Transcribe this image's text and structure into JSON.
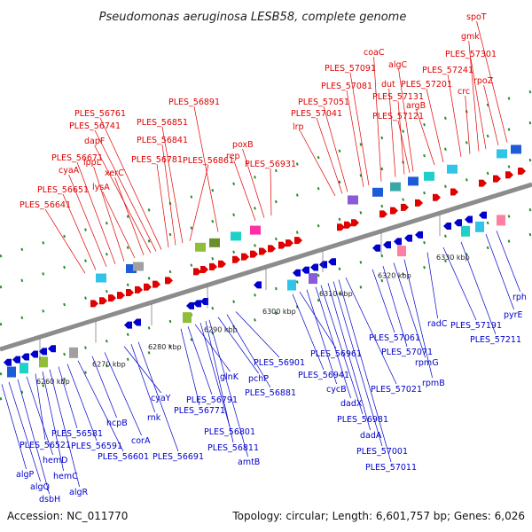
{
  "title": "Pseudomonas aeruginosa LESB58, complete genome",
  "accession": "Accession: NC_011770",
  "summary": "Topology: circular; Length: 6,601,757 bp; Genes: 6,026",
  "colors": {
    "forward": "#e00000",
    "reverse": "#0000cc",
    "backbone": "#8c8c8c",
    "dots": "#2a8a2a"
  },
  "ticks": [
    "6260 kbp",
    "6270 kbp",
    "6280 kbp",
    "6290 kbp",
    "6300 kbp",
    "6310 kbp",
    "6320 kbp",
    "6330 kbp"
  ],
  "forward_labels": [
    "PLES_56641",
    "PLES_56651",
    "cyaA",
    "PLES_56671",
    "lppL",
    "lysA",
    "xerC",
    "dapF",
    "PLES_56741",
    "PLES_56761",
    "PLES_56781",
    "PLES_56841",
    "PLES_56851",
    "PLES_56861",
    "PLES_56891",
    "rep",
    "poxB",
    "PLES_56931",
    "lrp",
    "PLES_57041",
    "PLES_57051",
    "PLES_57081",
    "PLES_57091",
    "coaC",
    "dut",
    "PLES_57131",
    "PLES_57121",
    "algC",
    "argB",
    "PLES_57201",
    "PLES_57241",
    "crc",
    "gmk",
    "PLES_57301",
    "rpoZ",
    "spoT"
  ],
  "reverse_labels": [
    "algP",
    "algQ",
    "dsbH",
    "hemD",
    "PLES_56521",
    "hemC",
    "algR",
    "PLES_56581",
    "PLES_56591",
    "PLES_56601",
    "hcpB",
    "corA",
    "cyaY",
    "rnk",
    "PLES_56691",
    "PLES_56771",
    "PLES_56791",
    "glnK",
    "PLES_56801",
    "PLES_56811",
    "amtB",
    "pchP",
    "PLES_56881",
    "PLES_56901",
    "PLES_56941",
    "PLES_56961",
    "cycB",
    "dadX",
    "PLES_56981",
    "dadA",
    "PLES_57001",
    "PLES_57011",
    "PLES_57021",
    "PLES_57061",
    "PLES_57071",
    "rpmG",
    "rpmB",
    "radC",
    "PLES_57191",
    "PLES_57211",
    "pyrE",
    "rph"
  ]
}
